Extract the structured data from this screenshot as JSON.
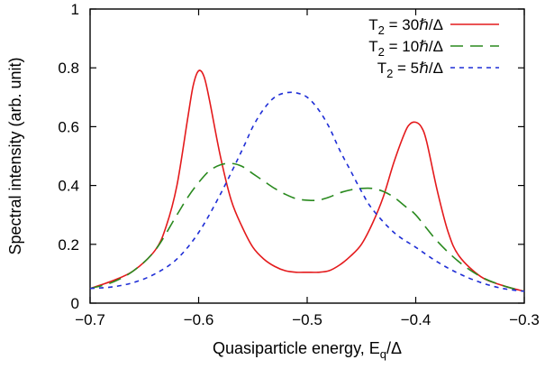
{
  "chart_data": {
    "type": "line",
    "title": "",
    "xlabel": "Quasiparticle energy, E",
    "xlabel_sub": "q",
    "xlabel_tail": "/Δ",
    "ylabel": "Spectral intensity (arb. unit)",
    "xlim": [
      -0.7,
      -0.3
    ],
    "ylim": [
      0,
      1
    ],
    "x_ticks": [
      -0.7,
      -0.6,
      -0.5,
      -0.4,
      -0.3
    ],
    "x_tick_labels": [
      "−0.7",
      "−0.6",
      "−0.5",
      "−0.4",
      "−0.3"
    ],
    "y_ticks": [
      0,
      0.2,
      0.4,
      0.6,
      0.8,
      1
    ],
    "y_tick_labels": [
      "0",
      "0.2",
      "0.4",
      "0.6",
      "0.8",
      "1"
    ],
    "grid": false,
    "legend_position": "top-right",
    "series": [
      {
        "name": "T2 = 30ℏ/Δ",
        "legend_parts": [
          "T",
          "2",
          " = 30ℏ/Δ"
        ],
        "color": "#e41a1c",
        "dash": "solid",
        "x": [
          -0.7,
          -0.68,
          -0.66,
          -0.64,
          -0.63,
          -0.62,
          -0.61,
          -0.605,
          -0.6,
          -0.595,
          -0.59,
          -0.58,
          -0.57,
          -0.56,
          -0.55,
          -0.54,
          -0.53,
          -0.52,
          -0.51,
          -0.5,
          -0.49,
          -0.48,
          -0.47,
          -0.46,
          -0.45,
          -0.44,
          -0.43,
          -0.42,
          -0.41,
          -0.405,
          -0.4,
          -0.395,
          -0.39,
          -0.38,
          -0.37,
          -0.36,
          -0.34,
          -0.32,
          -0.3
        ],
        "y": [
          0.05,
          0.075,
          0.11,
          0.18,
          0.26,
          0.4,
          0.63,
          0.74,
          0.79,
          0.77,
          0.69,
          0.5,
          0.35,
          0.26,
          0.19,
          0.15,
          0.125,
          0.11,
          0.105,
          0.105,
          0.105,
          0.11,
          0.13,
          0.16,
          0.2,
          0.27,
          0.36,
          0.48,
          0.58,
          0.61,
          0.615,
          0.6,
          0.55,
          0.38,
          0.24,
          0.16,
          0.09,
          0.06,
          0.04
        ]
      },
      {
        "name": "T2 = 10ℏ/Δ",
        "legend_parts": [
          "T",
          "2",
          " = 10ℏ/Δ"
        ],
        "color": "#2a8a1f",
        "dash": "14,8",
        "x": [
          -0.7,
          -0.68,
          -0.66,
          -0.64,
          -0.62,
          -0.61,
          -0.6,
          -0.59,
          -0.58,
          -0.57,
          -0.56,
          -0.55,
          -0.54,
          -0.53,
          -0.52,
          -0.51,
          -0.5,
          -0.49,
          -0.48,
          -0.47,
          -0.46,
          -0.45,
          -0.44,
          -0.43,
          -0.42,
          -0.41,
          -0.4,
          -0.38,
          -0.36,
          -0.34,
          -0.32,
          -0.3
        ],
        "y": [
          0.05,
          0.07,
          0.11,
          0.18,
          0.3,
          0.36,
          0.41,
          0.45,
          0.47,
          0.475,
          0.465,
          0.44,
          0.415,
          0.39,
          0.37,
          0.355,
          0.35,
          0.35,
          0.36,
          0.375,
          0.385,
          0.39,
          0.39,
          0.38,
          0.36,
          0.33,
          0.3,
          0.21,
          0.14,
          0.09,
          0.06,
          0.04
        ]
      },
      {
        "name": "T2 = 5ℏ/Δ",
        "legend_parts": [
          "T",
          "2",
          " = 5ℏ/Δ"
        ],
        "color": "#1f2ed6",
        "dash": "5,5",
        "x": [
          -0.7,
          -0.68,
          -0.66,
          -0.64,
          -0.62,
          -0.6,
          -0.58,
          -0.56,
          -0.55,
          -0.54,
          -0.53,
          -0.52,
          -0.51,
          -0.5,
          -0.49,
          -0.48,
          -0.47,
          -0.46,
          -0.45,
          -0.44,
          -0.42,
          -0.4,
          -0.38,
          -0.36,
          -0.34,
          -0.32,
          -0.3
        ],
        "y": [
          0.05,
          0.055,
          0.07,
          0.1,
          0.15,
          0.24,
          0.37,
          0.52,
          0.6,
          0.66,
          0.7,
          0.715,
          0.715,
          0.7,
          0.66,
          0.6,
          0.52,
          0.45,
          0.38,
          0.32,
          0.24,
          0.19,
          0.14,
          0.1,
          0.07,
          0.05,
          0.04
        ]
      }
    ]
  }
}
